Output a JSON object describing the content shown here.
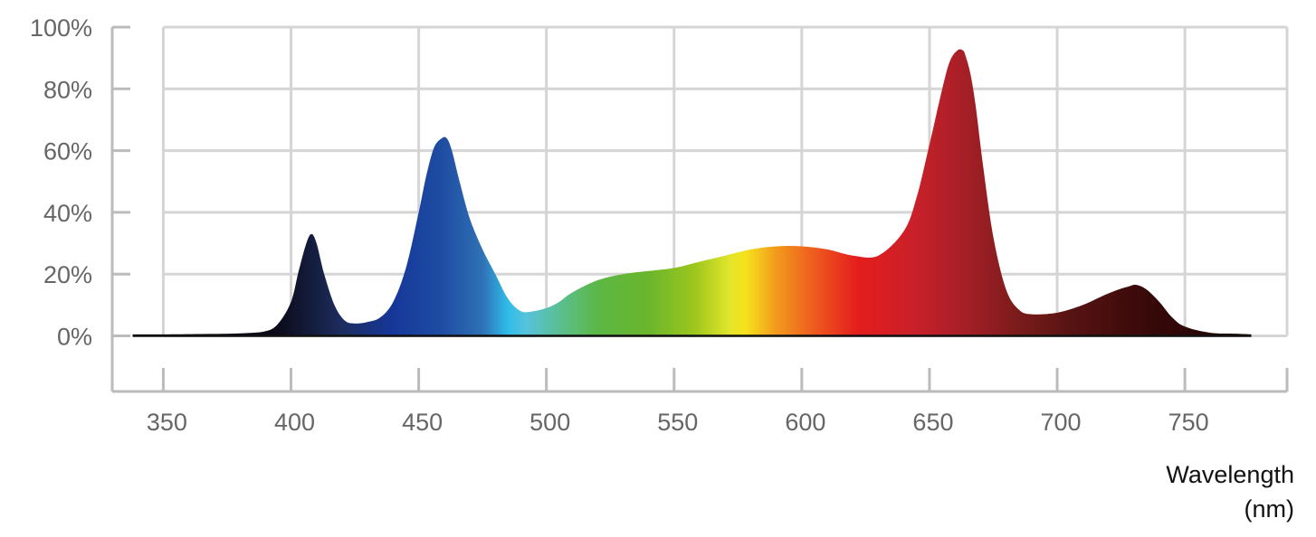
{
  "chart_data": {
    "type": "area",
    "title": "",
    "xlabel_lines": [
      "Wavelength",
      "(nm)"
    ],
    "ylabel": "",
    "xlim": [
      330,
      790
    ],
    "ylim": [
      -18,
      100
    ],
    "x_ticks": [
      350,
      400,
      450,
      500,
      550,
      600,
      650,
      700,
      750
    ],
    "x_tick_labels": [
      "350",
      "400",
      "450",
      "500",
      "550",
      "600",
      "650",
      "700",
      "750"
    ],
    "y_ticks": [
      0,
      20,
      40,
      60,
      80,
      100
    ],
    "y_tick_labels": [
      "0%",
      "20%",
      "40%",
      "60%",
      "80%",
      "100%"
    ],
    "grid": true,
    "series": [
      {
        "x": [
          338,
          350,
          365,
          380,
          390,
          395,
          400,
          403,
          406,
          408,
          410,
          413,
          417,
          421,
          425,
          430,
          435,
          440,
          445,
          450,
          453,
          456,
          459,
          461,
          463,
          466,
          470,
          475,
          480,
          485,
          490,
          495,
          500,
          505,
          510,
          520,
          530,
          540,
          550,
          560,
          570,
          580,
          590,
          600,
          610,
          620,
          630,
          640,
          645,
          650,
          655,
          658,
          661,
          663,
          664,
          666,
          668,
          671,
          675,
          680,
          685,
          690,
          700,
          710,
          718,
          724,
          728,
          731,
          735,
          740,
          745,
          750,
          760,
          770,
          776
        ],
        "y": [
          0.5,
          0.5,
          0.6,
          0.8,
          1.5,
          4,
          11,
          21,
          30,
          33,
          30,
          20,
          10,
          5,
          4,
          4.5,
          6,
          11,
          22,
          40,
          52,
          61,
          64,
          64,
          60,
          50,
          38,
          28,
          20,
          12,
          8,
          8,
          9,
          11,
          14,
          18,
          20,
          21,
          22,
          24,
          26,
          28,
          29,
          29,
          28,
          26,
          26,
          34,
          45,
          62,
          80,
          89,
          92.5,
          92.5,
          91,
          85,
          75,
          55,
          32,
          15,
          8.5,
          7,
          7.5,
          10,
          13,
          15,
          16,
          16.5,
          15,
          11,
          6,
          3,
          1,
          0.7,
          0.5
        ]
      }
    ],
    "spectrum_colors": [
      {
        "nm": 338,
        "color": "#000000"
      },
      {
        "nm": 395,
        "color": "#0b0b1a"
      },
      {
        "nm": 420,
        "color": "#1d2d5e"
      },
      {
        "nm": 440,
        "color": "#16379a"
      },
      {
        "nm": 460,
        "color": "#1f4ea3"
      },
      {
        "nm": 475,
        "color": "#2f71b6"
      },
      {
        "nm": 485,
        "color": "#2fbde8"
      },
      {
        "nm": 492,
        "color": "#56c3dc"
      },
      {
        "nm": 505,
        "color": "#5bbf92"
      },
      {
        "nm": 520,
        "color": "#5cb745"
      },
      {
        "nm": 540,
        "color": "#6ab62c"
      },
      {
        "nm": 558,
        "color": "#9dc61e"
      },
      {
        "nm": 572,
        "color": "#e3e62a"
      },
      {
        "nm": 578,
        "color": "#f5e21c"
      },
      {
        "nm": 590,
        "color": "#f29a1c"
      },
      {
        "nm": 605,
        "color": "#ee5a1e"
      },
      {
        "nm": 622,
        "color": "#e41d1c"
      },
      {
        "nm": 645,
        "color": "#c8202a"
      },
      {
        "nm": 665,
        "color": "#a31f26"
      },
      {
        "nm": 685,
        "color": "#7a1b1b"
      },
      {
        "nm": 705,
        "color": "#571413"
      },
      {
        "nm": 730,
        "color": "#3d0a0a"
      },
      {
        "nm": 776,
        "color": "#1a0404"
      }
    ],
    "colors": {
      "grid": "#d5d5d5",
      "axis": "#bbbbbb",
      "tick_text": "#666666",
      "title_text": "#111111"
    }
  }
}
